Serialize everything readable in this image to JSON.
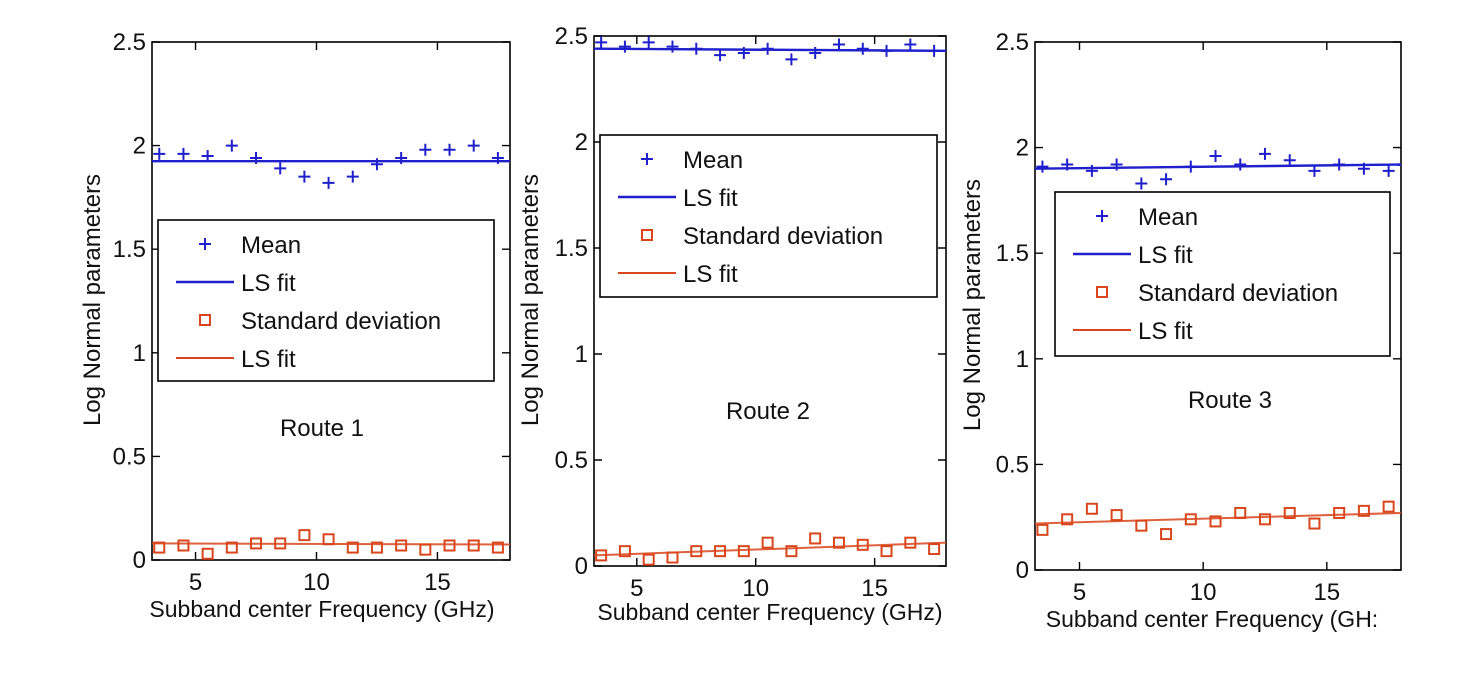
{
  "colors": {
    "mean": "#1f1fcc",
    "std": "#d9461c",
    "axis": "#000000"
  },
  "chart_data": [
    {
      "type": "scatter",
      "annotation": "Route 1",
      "xlabel": "Subband center Frequency (GHz)",
      "ylabel": "Log Normal parameters",
      "xlim": [
        3.2,
        18
      ],
      "ylim": [
        0,
        2.5
      ],
      "xticks": [
        "5",
        "10",
        "15"
      ],
      "yticks": [
        "0",
        "0.5",
        "1",
        "1.5",
        "2",
        "2.5"
      ],
      "grid": false,
      "legend_position": "center",
      "legend": [
        "Mean",
        "LS fit",
        "Standard deviation",
        "LS fit"
      ],
      "series": [
        {
          "name": "Mean",
          "marker": "plus",
          "x": [
            3.5,
            4.5,
            5.5,
            6.5,
            7.5,
            8.5,
            9.5,
            10.5,
            11.5,
            12.5,
            13.5,
            14.5,
            15.5,
            16.5,
            17.5
          ],
          "y": [
            1.96,
            1.96,
            1.95,
            2.0,
            1.94,
            1.89,
            1.85,
            1.82,
            1.85,
            1.91,
            1.94,
            1.98,
            1.98,
            2.0,
            1.94
          ]
        },
        {
          "name": "LS fit",
          "line": true,
          "x": [
            3.2,
            18
          ],
          "y": [
            1.925,
            1.925
          ]
        },
        {
          "name": "Standard deviation",
          "marker": "square",
          "x": [
            3.5,
            4.5,
            5.5,
            6.5,
            7.5,
            8.5,
            9.5,
            10.5,
            11.5,
            12.5,
            13.5,
            14.5,
            15.5,
            16.5,
            17.5
          ],
          "y": [
            0.06,
            0.07,
            0.03,
            0.06,
            0.08,
            0.08,
            0.12,
            0.1,
            0.06,
            0.06,
            0.07,
            0.05,
            0.07,
            0.07,
            0.06
          ]
        },
        {
          "name": "LS fit",
          "line": true,
          "x": [
            3.2,
            18
          ],
          "y": [
            0.08,
            0.075
          ]
        }
      ]
    },
    {
      "type": "scatter",
      "annotation": "Route 2",
      "xlabel": "Subband center Frequency (GHz)",
      "ylabel": "Log Normal parameters",
      "xlim": [
        3.2,
        18
      ],
      "ylim": [
        0,
        2.5
      ],
      "xticks": [
        "5",
        "10",
        "15"
      ],
      "yticks": [
        "0",
        "0.5",
        "1",
        "1.5",
        "2",
        "2.5"
      ],
      "grid": false,
      "legend_position": "top",
      "legend": [
        "Mean",
        "LS fit",
        "Standard deviation",
        "LS fit"
      ],
      "series": [
        {
          "name": "Mean",
          "marker": "plus",
          "x": [
            3.5,
            4.5,
            5.5,
            6.5,
            7.5,
            8.5,
            9.5,
            10.5,
            11.5,
            12.5,
            13.5,
            14.5,
            15.5,
            16.5,
            17.5
          ],
          "y": [
            2.47,
            2.45,
            2.47,
            2.45,
            2.44,
            2.41,
            2.42,
            2.44,
            2.39,
            2.42,
            2.46,
            2.44,
            2.43,
            2.46,
            2.43
          ]
        },
        {
          "name": "LS fit",
          "line": true,
          "x": [
            3.2,
            18
          ],
          "y": [
            2.44,
            2.43
          ]
        },
        {
          "name": "Standard deviation",
          "marker": "square",
          "x": [
            3.5,
            4.5,
            5.5,
            6.5,
            7.5,
            8.5,
            9.5,
            10.5,
            11.5,
            12.5,
            13.5,
            14.5,
            15.5,
            16.5,
            17.5
          ],
          "y": [
            0.05,
            0.07,
            0.03,
            0.04,
            0.07,
            0.07,
            0.07,
            0.11,
            0.07,
            0.13,
            0.11,
            0.1,
            0.07,
            0.11,
            0.08
          ]
        },
        {
          "name": "LS fit",
          "line": true,
          "x": [
            3.2,
            18
          ],
          "y": [
            0.05,
            0.11
          ]
        }
      ]
    },
    {
      "type": "scatter",
      "annotation": "Route 3",
      "xlabel": "Subband center Frequency (GH:",
      "ylabel": "Log Normal parameters",
      "xlim": [
        3.2,
        18
      ],
      "ylim": [
        0,
        2.5
      ],
      "xticks": [
        "5",
        "10",
        "15"
      ],
      "yticks": [
        "0",
        "0.5",
        "1",
        "1.5",
        "2",
        "2.5"
      ],
      "grid": false,
      "legend_position": "center",
      "legend": [
        "Mean",
        "LS fit",
        "Standard deviation",
        "LS fit"
      ],
      "series": [
        {
          "name": "Mean",
          "marker": "plus",
          "x": [
            3.5,
            4.5,
            5.5,
            6.5,
            7.5,
            8.5,
            9.5,
            10.5,
            11.5,
            12.5,
            13.5,
            14.5,
            15.5,
            16.5,
            17.5
          ],
          "y": [
            1.91,
            1.92,
            1.89,
            1.92,
            1.83,
            1.85,
            1.91,
            1.96,
            1.92,
            1.97,
            1.94,
            1.89,
            1.92,
            1.9,
            1.89
          ]
        },
        {
          "name": "LS fit",
          "line": true,
          "x": [
            3.2,
            18
          ],
          "y": [
            1.9,
            1.92
          ]
        },
        {
          "name": "Standard deviation",
          "marker": "square",
          "x": [
            3.5,
            4.5,
            5.5,
            6.5,
            7.5,
            8.5,
            9.5,
            10.5,
            11.5,
            12.5,
            13.5,
            14.5,
            15.5,
            16.5,
            17.5
          ],
          "y": [
            0.19,
            0.24,
            0.29,
            0.26,
            0.21,
            0.17,
            0.24,
            0.23,
            0.27,
            0.24,
            0.27,
            0.22,
            0.27,
            0.28,
            0.3
          ]
        },
        {
          "name": "LS fit",
          "line": true,
          "x": [
            3.2,
            18
          ],
          "y": [
            0.22,
            0.27
          ]
        }
      ]
    }
  ]
}
